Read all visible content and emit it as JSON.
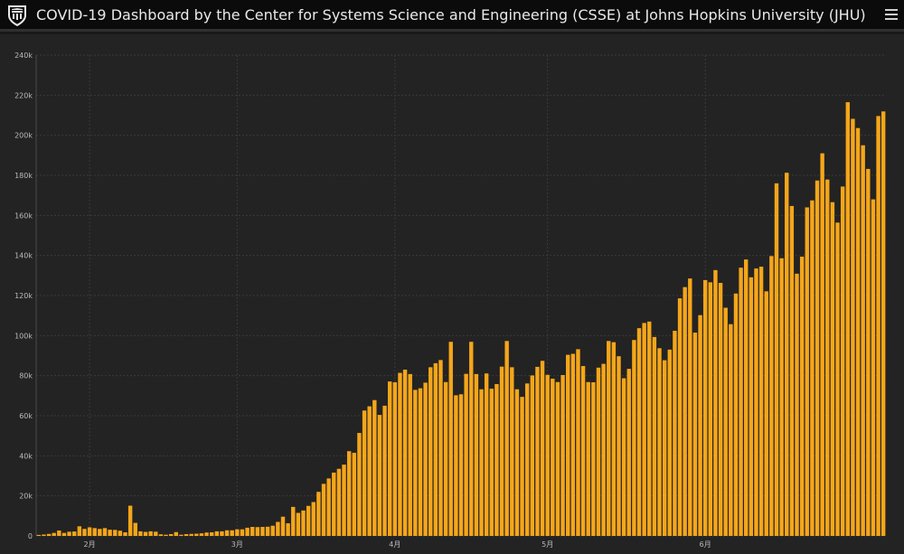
{
  "header": {
    "title": "COVID-19 Dashboard by the Center for Systems Science and Engineering (CSSE) at Johns Hopkins University (JHU)"
  },
  "colors": {
    "bar": "#f5a61a",
    "grid": "#3a3a3a",
    "text": "#bbbbbb",
    "background": "#232323",
    "header_bg": "#0b0b0b"
  },
  "icons": [
    "jhu-shield-logo-icon",
    "hamburger-menu-icon"
  ],
  "chart_data": {
    "type": "bar",
    "title": "",
    "xlabel": "",
    "ylabel": "",
    "ylim": [
      0,
      240000
    ],
    "y_ticks": [
      "0",
      "20k",
      "40k",
      "60k",
      "80k",
      "100k",
      "120k",
      "140k",
      "160k",
      "180k",
      "200k",
      "220k",
      "240k"
    ],
    "x_ticks": [
      {
        "label": "2月",
        "index": 10
      },
      {
        "label": "3月",
        "index": 39
      },
      {
        "label": "4月",
        "index": 70
      },
      {
        "label": "5月",
        "index": 100
      },
      {
        "label": "6月",
        "index": 131
      }
    ],
    "grid": true,
    "values": [
      500,
      700,
      1000,
      1500,
      2700,
      1500,
      2100,
      2200,
      4800,
      3500,
      4300,
      3900,
      3500,
      3900,
      3100,
      3000,
      2600,
      1800,
      15100,
      6500,
      2300,
      2000,
      2300,
      2100,
      800,
      600,
      900,
      1900,
      600,
      900,
      1000,
      1100,
      1300,
      1700,
      1800,
      2300,
      2300,
      2800,
      2800,
      3300,
      3300,
      4100,
      4500,
      4400,
      4500,
      4600,
      5100,
      7000,
      9600,
      6300,
      14500,
      11500,
      12700,
      15000,
      16900,
      22000,
      26000,
      28700,
      31600,
      33500,
      35600,
      42300,
      41500,
      51400,
      62600,
      64700,
      67800,
      60400,
      65000,
      77100,
      76700,
      81400,
      83000,
      80800,
      72900,
      73700,
      76500,
      84200,
      86200,
      87800,
      76800,
      96900,
      70200,
      70700,
      80900,
      96900,
      80800,
      73200,
      81100,
      73500,
      75800,
      84500,
      97300,
      84200,
      73200,
      69400,
      76100,
      80100,
      84400,
      87400,
      80400,
      78500,
      76800,
      80300,
      90400,
      90900,
      93200,
      84800,
      76800,
      76700,
      84000,
      85900,
      97300,
      96700,
      89700,
      78700,
      83400,
      97800,
      103700,
      106300,
      107000,
      99300,
      93700,
      87700,
      93000,
      102400,
      118600,
      124200,
      128500,
      101500,
      110200,
      127700,
      126600,
      132700,
      126300,
      113900,
      105700,
      121000,
      133900,
      138000,
      129100,
      133500,
      134400,
      122100,
      139700,
      176000,
      138600,
      181300,
      164700,
      130900,
      139400,
      164000,
      167500,
      177400,
      191000,
      177900,
      166600,
      156400,
      174400,
      216500,
      208200,
      203600,
      195000,
      183200,
      168000,
      209600,
      211900
    ]
  }
}
